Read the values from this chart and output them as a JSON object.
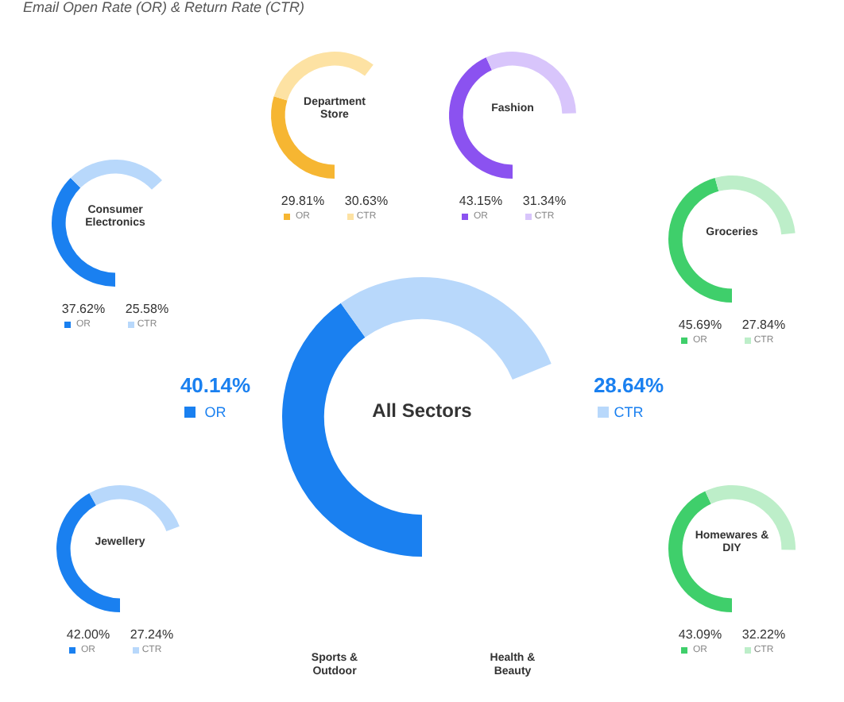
{
  "chart_data": [
    {
      "type": "other",
      "title": "Email Open Rate (OR) & Return Rate (CTR)"
    },
    {
      "type": "donut",
      "title": "Department Store",
      "legend": "bottom",
      "categories": [
        "OR",
        "CTR"
      ],
      "values": [
        29.81,
        30.63
      ],
      "value_labels": [
        "29.81%",
        "30.63%"
      ],
      "colors": [
        "#f6b632",
        "#fde2a3"
      ]
    },
    {
      "type": "donut",
      "title": "Fashion",
      "legend": "bottom",
      "categories": [
        "OR",
        "CTR"
      ],
      "values": [
        43.15,
        31.34
      ],
      "value_labels": [
        "43.15%",
        "31.34%"
      ],
      "colors": [
        "#8b52f0",
        "#d8c5fb"
      ]
    },
    {
      "type": "donut",
      "title": "Consumer Electronics",
      "legend": "bottom",
      "categories": [
        "OR",
        "CTR"
      ],
      "values": [
        37.62,
        25.58
      ],
      "value_labels": [
        "37.62%",
        "25.58%"
      ],
      "colors": [
        "#1a80f0",
        "#b8d8fb"
      ]
    },
    {
      "type": "donut",
      "title": "Groceries",
      "legend": "bottom",
      "categories": [
        "OR",
        "CTR"
      ],
      "values": [
        45.69,
        27.84
      ],
      "value_labels": [
        "45.69%",
        "27.84%"
      ],
      "colors": [
        "#3fcf6b",
        "#bdeec9"
      ]
    },
    {
      "type": "donut",
      "title": "All Sectors",
      "legend": "top left",
      "categories": [
        "OR",
        "CTR"
      ],
      "values": [
        40.14,
        28.64
      ],
      "value_labels": [
        "40.14%",
        "28.64%"
      ],
      "colors": [
        "#1a80f0",
        "#b8d8fb"
      ]
    },
    {
      "type": "donut",
      "title": "Jewellery",
      "legend": "bottom",
      "categories": [
        "OR",
        "CTR"
      ],
      "values": [
        42.0,
        27.24
      ],
      "value_labels": [
        "42.00%",
        "27.24%"
      ],
      "colors": [
        "#1a80f0",
        "#b8d8fb"
      ]
    },
    {
      "type": "donut",
      "title": "Homewares & DIY",
      "legend": "bottom",
      "categories": [
        "OR",
        "CTR"
      ],
      "values": [
        43.09,
        32.22
      ],
      "value_labels": [
        "43.09%",
        "32.22%"
      ],
      "colors": [
        "#3fcf6b",
        "#bdeec9"
      ]
    },
    {
      "type": "other",
      "title": "Sports & Outdoor"
    },
    {
      "type": "other",
      "title": "Health & Beauty"
    }
  ]
}
